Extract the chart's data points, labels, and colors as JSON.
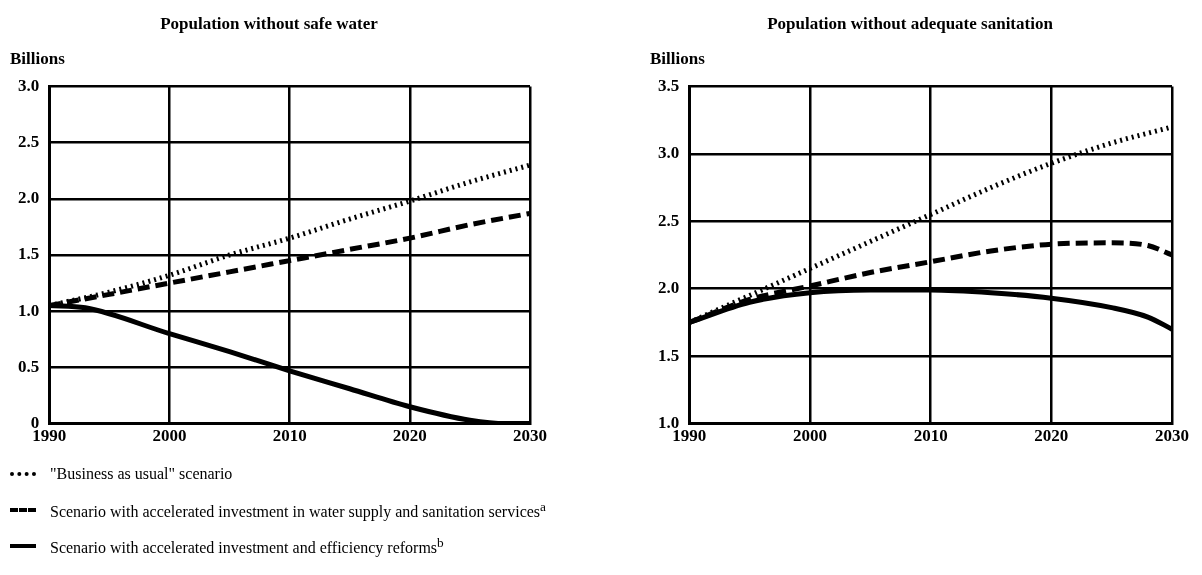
{
  "chart_data": [
    {
      "type": "line",
      "title": "Population without safe water",
      "ylabel": "Billions",
      "xlim": [
        1990,
        2030
      ],
      "xticks": [
        1990,
        2000,
        2010,
        2020,
        2030
      ],
      "ylim": [
        0,
        3
      ],
      "yticks": [
        {
          "value": 0,
          "label": "0"
        },
        {
          "value": 0.5,
          "label": "0.5"
        },
        {
          "value": 1,
          "label": "1.0"
        },
        {
          "value": 1.5,
          "label": "1.5"
        },
        {
          "value": 2,
          "label": "2.0"
        },
        {
          "value": 2.5,
          "label": "2.5"
        },
        {
          "value": 3,
          "label": "3.0"
        }
      ],
      "grid": true,
      "legend": "bottom",
      "marker": "none",
      "series": [
        {
          "name": "\"Business as usual\" scenario",
          "color": "#000000",
          "line_style": "dotted",
          "x": [
            1990,
            1995,
            2000,
            2005,
            2010,
            2015,
            2020,
            2025,
            2030
          ],
          "values": [
            1.05,
            1.17,
            1.32,
            1.5,
            1.65,
            1.82,
            1.98,
            2.15,
            2.3
          ]
        },
        {
          "name": "Scenario with accelerated investment in water supply and sanitation services$^{a}$",
          "color": "#000000",
          "line_style": "dashed",
          "x": [
            1990,
            1995,
            2000,
            2005,
            2010,
            2015,
            2020,
            2025,
            2030
          ],
          "values": [
            1.05,
            1.15,
            1.25,
            1.35,
            1.45,
            1.55,
            1.65,
            1.77,
            1.87
          ]
        },
        {
          "name": "Scenario with accelerated investment and efficiency reforms$^{b}$",
          "color": "#000000",
          "line_style": "solid",
          "x": [
            1990,
            1993,
            2000,
            2005,
            2010,
            2015,
            2020,
            2025,
            2028,
            2030
          ],
          "values": [
            1.05,
            1.03,
            0.8,
            0.64,
            0.47,
            0.31,
            0.15,
            0.03,
            0,
            0
          ]
        }
      ]
    },
    {
      "type": "line",
      "title": "Population without adequate sanitation",
      "ylabel": "Billions",
      "xlim": [
        1990,
        2030
      ],
      "xticks": [
        1990,
        2000,
        2010,
        2020,
        2030
      ],
      "ylim": [
        1,
        3.5
      ],
      "yticks": [
        {
          "value": 1,
          "label": "1.0"
        },
        {
          "value": 1.5,
          "label": "1.5"
        },
        {
          "value": 2,
          "label": "2.0"
        },
        {
          "value": 2.5,
          "label": "2.5"
        },
        {
          "value": 3,
          "label": "3.0"
        },
        {
          "value": 3.5,
          "label": "3.5"
        }
      ],
      "grid": true,
      "marker": "none",
      "series": [
        {
          "color": "#000000",
          "line_style": "dotted",
          "x": [
            1990,
            1995,
            2000,
            2005,
            2010,
            2015,
            2020,
            2025,
            2030
          ],
          "values": [
            1.75,
            1.95,
            2.15,
            2.35,
            2.55,
            2.75,
            2.93,
            3.08,
            3.2
          ]
        },
        {
          "color": "#000000",
          "line_style": "dashed",
          "x": [
            1990,
            1995,
            2000,
            2005,
            2010,
            2015,
            2020,
            2025,
            2028,
            2030
          ],
          "values": [
            1.75,
            1.92,
            2.02,
            2.12,
            2.2,
            2.28,
            2.33,
            2.34,
            2.32,
            2.25
          ]
        },
        {
          "color": "#000000",
          "line_style": "solid",
          "x": [
            1990,
            1995,
            2000,
            2005,
            2010,
            2015,
            2020,
            2025,
            2028,
            2030
          ],
          "values": [
            1.75,
            1.9,
            1.97,
            1.99,
            1.99,
            1.97,
            1.93,
            1.86,
            1.79,
            1.7
          ]
        }
      ]
    }
  ]
}
